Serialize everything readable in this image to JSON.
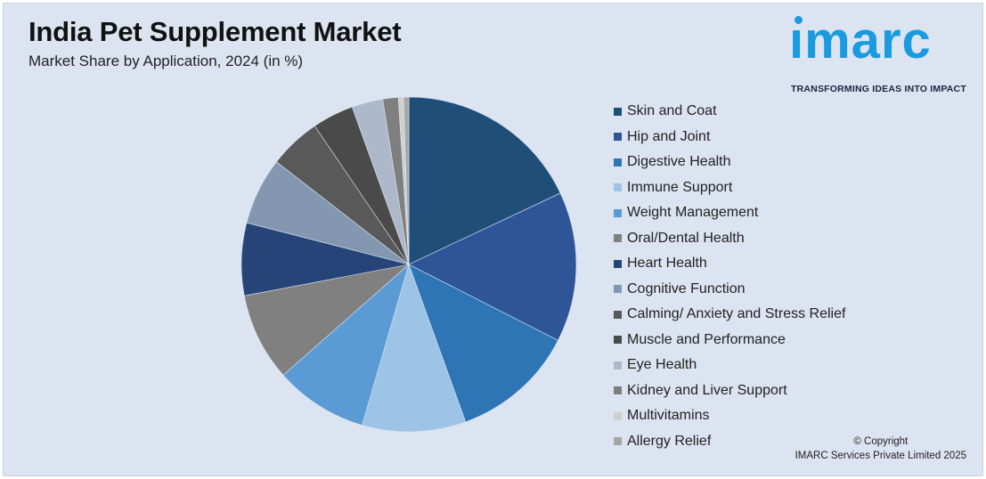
{
  "header": {
    "title": "India Pet Supplement Market",
    "subtitle": "Market Share by Application, 2024 (in %)"
  },
  "logo": {
    "word": "ımarc",
    "tagline": "TRANSFORMING IDEAS INTO IMPACT",
    "color": "#1a9be0"
  },
  "copyright": {
    "line1": "© Copyright",
    "line2": "IMARC Services Private Limited 2025"
  },
  "chart_data": {
    "type": "pie",
    "title": "India Pet Supplement Market",
    "subtitle": "Market Share by Application, 2024 (in %)",
    "legend_position": "right",
    "slices": [
      {
        "label": "Skin and Coat",
        "value": 18.0,
        "color": "#1f4e79"
      },
      {
        "label": "Hip and Joint",
        "value": 14.5,
        "color": "#2e5597"
      },
      {
        "label": "Digestive Health",
        "value": 12.0,
        "color": "#2e75b6"
      },
      {
        "label": "Immune Support",
        "value": 10.0,
        "color": "#9dc3e6"
      },
      {
        "label": "Weight Management",
        "value": 9.0,
        "color": "#5b9bd5"
      },
      {
        "label": "Oral/Dental Health",
        "value": 8.5,
        "color": "#808080"
      },
      {
        "label": "Heart Health",
        "value": 7.0,
        "color": "#264478"
      },
      {
        "label": "Cognitive Function",
        "value": 6.5,
        "color": "#8497b0"
      },
      {
        "label": "Calming/ Anxiety and Stress Relief",
        "value": 5.0,
        "color": "#595959"
      },
      {
        "label": "Muscle and Performance",
        "value": 4.0,
        "color": "#4a4a4a"
      },
      {
        "label": "Eye Health",
        "value": 3.0,
        "color": "#adb9ca"
      },
      {
        "label": "Kidney and Liver Support",
        "value": 1.5,
        "color": "#7f7f7f"
      },
      {
        "label": "Multivitamins",
        "value": 0.5,
        "color": "#d0d0d0"
      },
      {
        "label": "Allergy Relief",
        "value": 0.5,
        "color": "#a6a6a6"
      }
    ]
  }
}
